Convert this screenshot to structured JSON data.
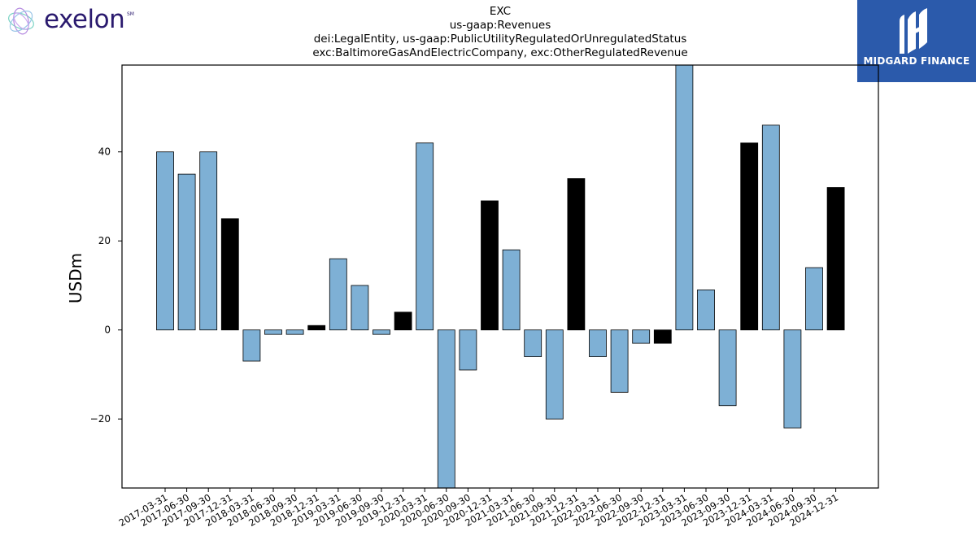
{
  "header": {
    "left_logo_text": "exelon",
    "left_logo_mark": "SM",
    "right_logo_text": "MIDGARD FINANCE",
    "brand_color": "#2b5aab",
    "left_logo_color": "#2a1a6e"
  },
  "chart_data": {
    "type": "bar",
    "title_lines": [
      "EXC",
      "us-gaap:Revenues",
      "dei:LegalEntity, us-gaap:PublicUtilityRegulatedOrUnregulatedStatus",
      "exc:BaltimoreGasAndElectricCompany, exc:OtherRegulatedRevenue"
    ],
    "xlabel": "",
    "ylabel": "USDm",
    "ylim": [
      -35.5,
      59.5
    ],
    "yticks": [
      -20,
      0,
      20,
      40
    ],
    "grid": false,
    "legend": "none",
    "colors": {
      "quarter": "#7eb0d5",
      "year_end": "#000000"
    },
    "categories": [
      "2017-03-31",
      "2017-06-30",
      "2017-09-30",
      "2017-12-31",
      "2018-03-31",
      "2018-06-30",
      "2018-09-30",
      "2018-12-31",
      "2019-03-31",
      "2019-06-30",
      "2019-09-30",
      "2019-12-31",
      "2020-03-31",
      "2020-06-30",
      "2020-09-30",
      "2020-12-31",
      "2021-03-31",
      "2021-06-30",
      "2021-09-30",
      "2021-12-31",
      "2022-03-31",
      "2022-06-30",
      "2022-09-30",
      "2022-12-31",
      "2023-03-31",
      "2023-06-30",
      "2023-09-30",
      "2023-12-31",
      "2024-03-31",
      "2024-06-30",
      "2024-09-30",
      "2024-12-31"
    ],
    "values": [
      40,
      35,
      40,
      25,
      -7,
      -1,
      -1,
      1,
      16,
      10,
      -1,
      4,
      42,
      -36,
      -9,
      29,
      18,
      -6,
      -20,
      34,
      -6,
      -14,
      -3,
      -3,
      60,
      9,
      -17,
      42,
      46,
      -22,
      14,
      32
    ]
  }
}
